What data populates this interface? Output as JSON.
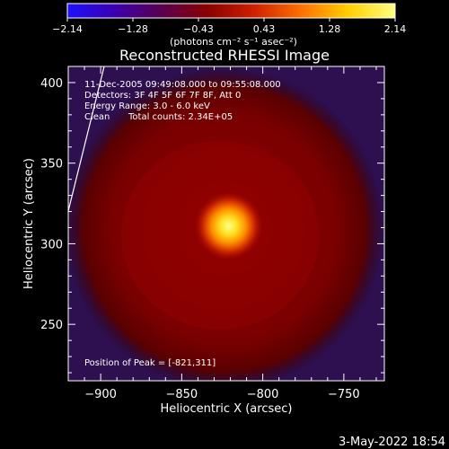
{
  "chart_data": {
    "type": "heatmap",
    "title": "Reconstructed RHESSI Image",
    "xlabel": "Heliocentric X (arcsec)",
    "ylabel": "Heliocentric Y (arcsec)",
    "xlim": [
      -920,
      -725
    ],
    "ylim": [
      215,
      410
    ],
    "x_ticks": [
      -900,
      -850,
      -800,
      -750
    ],
    "x_tick_labels": [
      "−900",
      "−850",
      "−800",
      "−750"
    ],
    "y_ticks": [
      250,
      300,
      350,
      400
    ],
    "y_tick_labels": [
      "250",
      "300",
      "350",
      "400"
    ],
    "colorbar": {
      "range": [
        -2.14,
        2.14
      ],
      "tick_labels": [
        "−2.14",
        "−1.28",
        "−0.43",
        "0.43",
        "1.28",
        "2.14"
      ],
      "units_label": "(photons cm⁻² s⁻¹ asec⁻²)",
      "colors": [
        "#1e10ff",
        "#3a00b0",
        "#5a0050",
        "#8a0000",
        "#d02000",
        "#ff7000",
        "#ffd000",
        "#ffff80"
      ]
    },
    "annotations": {
      "time_range": "11-Dec-2005 09:49:08.000 to 09:55:08.000",
      "detectors": "Detectors: 3F 4F 5F 6F 7F 8F, Att 0",
      "energy": "Energy Range: 3.0 - 6.0 keV",
      "method": "Clean",
      "counts": "Total counts: 2.34E+05",
      "peak": "Position of Peak = [-821,311]"
    },
    "peak": {
      "x": -821,
      "y": 311
    },
    "source_extent_arcsec": 75
  },
  "footer": {
    "timestamp": "3-May-2022 18:54"
  }
}
